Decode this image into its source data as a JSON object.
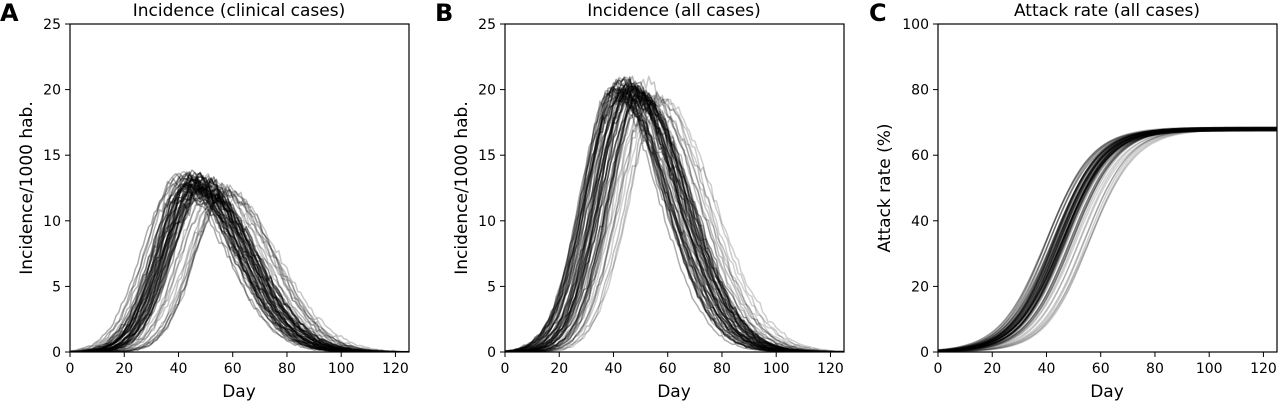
{
  "figure": {
    "background": "#ffffff",
    "line_color": "#000000"
  },
  "chart_data": [
    {
      "panel": "A",
      "type": "line",
      "title": "Incidence (clinical cases)",
      "xlabel": "Day",
      "ylabel": "Incidence/1000 hab.",
      "xlim": [
        0,
        125
      ],
      "ylim": [
        0,
        25
      ],
      "xticks": [
        0,
        20,
        40,
        60,
        80,
        100,
        120
      ],
      "yticks": [
        0,
        5,
        10,
        15,
        20,
        25
      ],
      "ensemble": {
        "runs": 60,
        "day_range": [
          0,
          125
        ],
        "peak_day": [
          36,
          60
        ],
        "peak_value": [
          11.5,
          13.5
        ],
        "typical_peak_day": 45,
        "typical_peak_value": 13
      },
      "grid": false,
      "legend": false
    },
    {
      "panel": "B",
      "type": "line",
      "title": "Incidence (all cases)",
      "xlabel": "Day",
      "ylabel": "Incidence/1000 hab.",
      "xlim": [
        0,
        125
      ],
      "ylim": [
        0,
        25
      ],
      "xticks": [
        0,
        20,
        40,
        60,
        80,
        100,
        120
      ],
      "yticks": [
        0,
        5,
        10,
        15,
        20,
        25
      ],
      "ensemble": {
        "runs": 60,
        "day_range": [
          0,
          125
        ],
        "peak_day": [
          36,
          60
        ],
        "peak_value": [
          18.5,
          21.5
        ],
        "typical_peak_day": 45,
        "typical_peak_value": 20
      },
      "grid": false,
      "legend": false
    },
    {
      "panel": "C",
      "type": "line",
      "title": "Attack rate (all cases)",
      "xlabel": "Day",
      "ylabel": "Attack rate (%)",
      "xlim": [
        0,
        125
      ],
      "ylim": [
        0,
        100
      ],
      "xticks": [
        0,
        20,
        40,
        60,
        80,
        100,
        120
      ],
      "yticks": [
        0,
        20,
        40,
        60,
        80,
        100
      ],
      "ensemble": {
        "runs": 60,
        "day_range": [
          0,
          125
        ],
        "final_value": 68,
        "midpoint_day": [
          40,
          56
        ],
        "typical_midpoint_day": 45
      },
      "grid": false,
      "legend": false
    }
  ]
}
